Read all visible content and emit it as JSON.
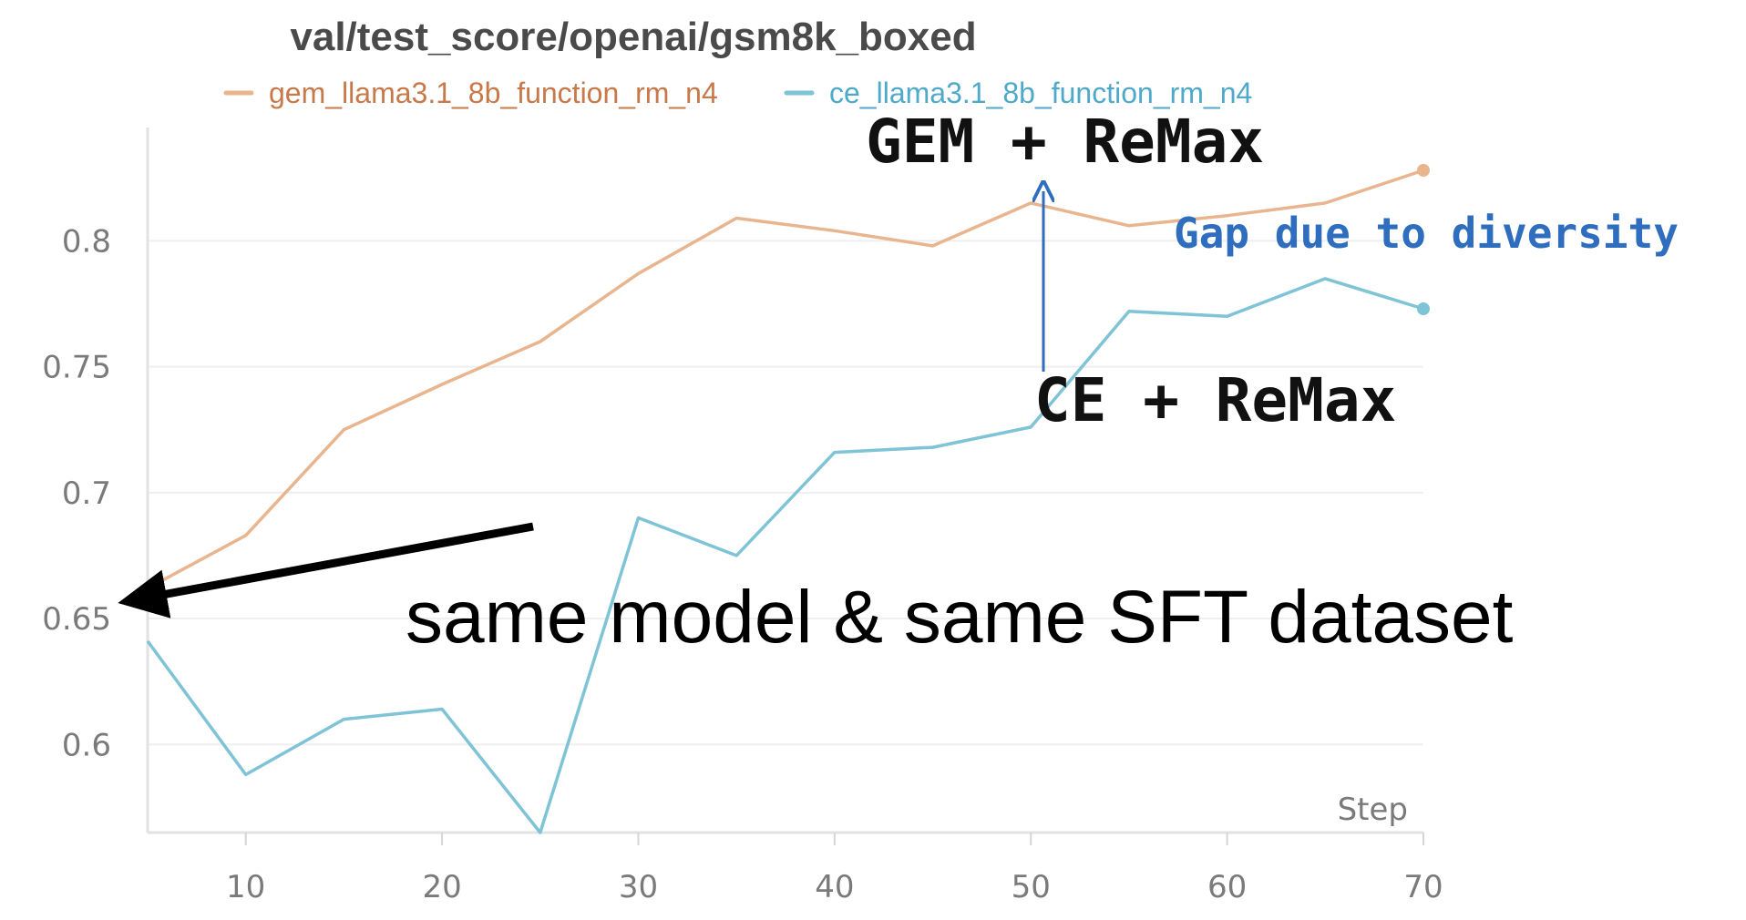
{
  "chart_data": {
    "type": "line",
    "title": "val/test_score/openai/gsm8k_boxed",
    "xlabel": "Step",
    "ylabel": "",
    "xlim": [
      5,
      70
    ],
    "ylim": [
      0.565,
      0.845
    ],
    "x_ticks": [
      "10",
      "20",
      "30",
      "40",
      "50",
      "60",
      "70"
    ],
    "x_tick_values": [
      10,
      20,
      30,
      40,
      50,
      60,
      70
    ],
    "y_ticks": [
      "0.6",
      "0.65",
      "0.7",
      "0.75",
      "0.8"
    ],
    "y_tick_values": [
      0.6,
      0.65,
      0.7,
      0.75,
      0.8
    ],
    "grid": true,
    "legend_position": "top",
    "x": [
      5,
      10,
      15,
      20,
      25,
      30,
      35,
      40,
      45,
      50,
      55,
      60,
      65,
      70
    ],
    "series": [
      {
        "name": "gem_llama3.1_8b_function_rm_n4",
        "color": "#e8b58f",
        "label_color": "#c8794a",
        "values": [
          0.662,
          0.683,
          0.725,
          0.743,
          0.76,
          0.787,
          0.809,
          0.804,
          0.798,
          0.815,
          0.806,
          0.81,
          0.815,
          0.828
        ]
      },
      {
        "name": "ce_llama3.1_8b_function_rm_n4",
        "color": "#7ec3d6",
        "label_color": "#4fa9c9",
        "values": [
          0.641,
          0.588,
          0.61,
          0.614,
          0.565,
          0.69,
          0.675,
          0.716,
          0.718,
          0.726,
          0.772,
          0.77,
          0.785,
          0.773
        ]
      }
    ],
    "annotations": [
      {
        "text": "GEM + ReMax",
        "color": "#111111"
      },
      {
        "text": "CE + ReMax",
        "color": "#111111"
      },
      {
        "text": "Gap due to diversity",
        "color": "#2f6dbf"
      },
      {
        "text": "same model & same SFT dataset",
        "color": "#000000"
      }
    ]
  }
}
